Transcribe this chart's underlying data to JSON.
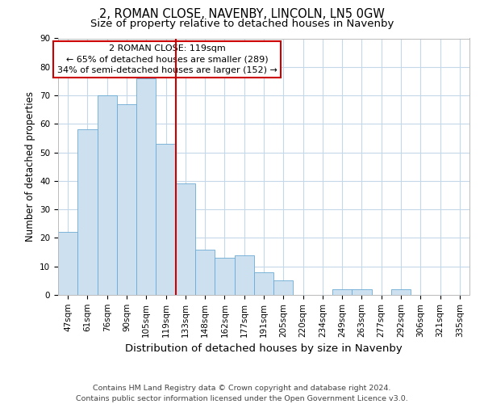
{
  "title": "2, ROMAN CLOSE, NAVENBY, LINCOLN, LN5 0GW",
  "subtitle": "Size of property relative to detached houses in Navenby",
  "xlabel": "Distribution of detached houses by size in Navenby",
  "ylabel": "Number of detached properties",
  "categories": [
    "47sqm",
    "61sqm",
    "76sqm",
    "90sqm",
    "105sqm",
    "119sqm",
    "133sqm",
    "148sqm",
    "162sqm",
    "177sqm",
    "191sqm",
    "205sqm",
    "220sqm",
    "234sqm",
    "249sqm",
    "263sqm",
    "277sqm",
    "292sqm",
    "306sqm",
    "321sqm",
    "335sqm"
  ],
  "values": [
    22,
    58,
    70,
    67,
    76,
    53,
    39,
    16,
    13,
    14,
    8,
    5,
    0,
    0,
    2,
    2,
    0,
    2,
    0,
    0,
    0
  ],
  "bar_color": "#cde0ef",
  "bar_edge_color": "#6aaad4",
  "highlight_index": 5,
  "highlight_line_color": "#cc0000",
  "ylim": [
    0,
    90
  ],
  "yticks": [
    0,
    10,
    20,
    30,
    40,
    50,
    60,
    70,
    80,
    90
  ],
  "annotation_text": "2 ROMAN CLOSE: 119sqm\n← 65% of detached houses are smaller (289)\n34% of semi-detached houses are larger (152) →",
  "annotation_box_edge": "#cc0000",
  "footer_line1": "Contains HM Land Registry data © Crown copyright and database right 2024.",
  "footer_line2": "Contains public sector information licensed under the Open Government Licence v3.0.",
  "background_color": "#ffffff",
  "grid_color": "#c5d8ea",
  "title_fontsize": 10.5,
  "subtitle_fontsize": 9.5,
  "xlabel_fontsize": 9.5,
  "ylabel_fontsize": 8.5,
  "tick_fontsize": 7.5,
  "annotation_fontsize": 8,
  "footer_fontsize": 6.8
}
